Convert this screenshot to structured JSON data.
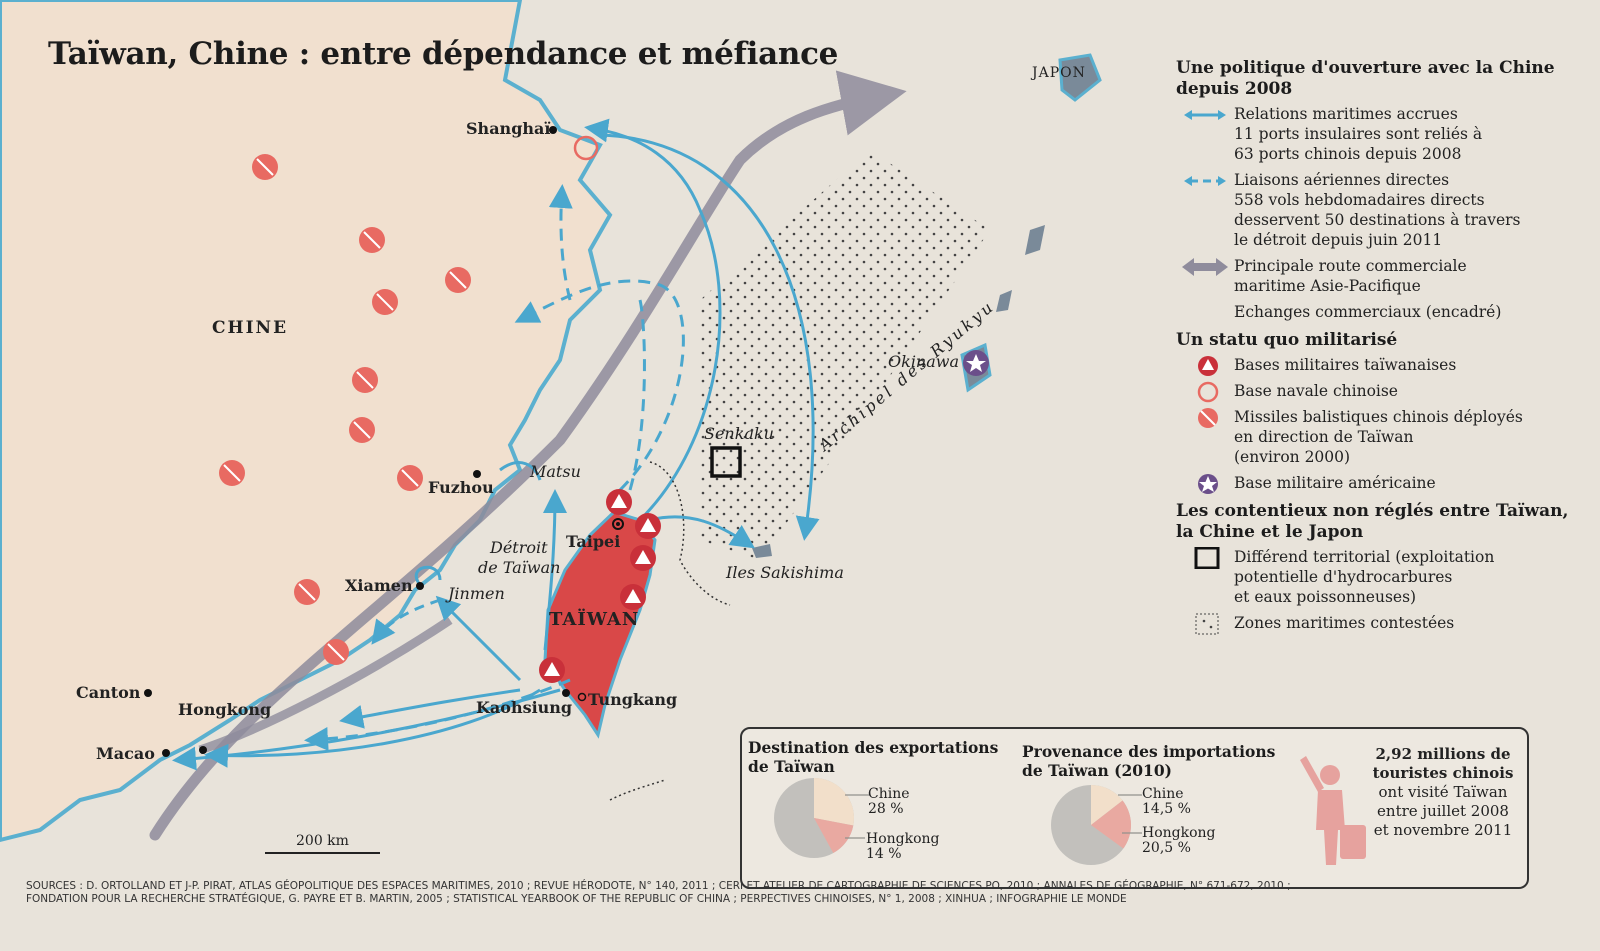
{
  "title": "Taïwan, Chine : entre dépendance et méfiance",
  "places": {
    "japon": "JAPON",
    "chine": "CHINE",
    "shanghai": "Shanghaï",
    "fuzhou": "Fuzhou",
    "matsu": "Matsu",
    "xiamen": "Xiamen",
    "jinmen": "Jinmen",
    "detroit": "Détroit",
    "detroit2": "de Taïwan",
    "taipei": "Taipei",
    "taiwan": "TAÏWAN",
    "tungkang": "Tungkang",
    "kaohsiung": "Kaohsiung",
    "canton": "Canton",
    "hongkong": "Hongkong",
    "macao": "Macao",
    "senkaku": "Senkaku",
    "sakishima": "Iles Sakishima",
    "okinawa": "Okinawa",
    "ryukyu": "Archipel des Ryukyu"
  },
  "scale_label": "200 km",
  "legend": {
    "section1": "Une politique d'ouverture avec la Chine depuis 2008",
    "maritime": [
      "Relations maritimes accrues",
      "11 ports insulaires sont reliés à",
      "63 ports chinois depuis 2008"
    ],
    "air": [
      "Liaisons aériennes directes",
      "558 vols hebdomadaires directs",
      "desservent 50 destinations à travers",
      "le détroit depuis juin 2011"
    ],
    "route": [
      "Principale route commerciale",
      "maritime Asie-Pacifique"
    ],
    "echanges": "Echanges commerciaux (encadré)",
    "section2": "Un statu quo militarisé",
    "bases_tw": "Bases militaires taïwanaises",
    "base_navale": "Base navale chinoise",
    "missiles": [
      "Missiles balistiques chinois déployés",
      "en direction de Taïwan",
      "(environ 2000)"
    ],
    "base_us": "Base militaire américaine",
    "section3": "Les contentieux non réglés entre Taïwan, la Chine et le Japon",
    "differend": [
      "Différend territorial (exploitation",
      "potentielle d'hydrocarbures",
      "et eaux poissonneuses)"
    ],
    "zones": "Zones maritimes contestées"
  },
  "inset": {
    "exports_title": [
      "Destination des exportations",
      "de Taïwan"
    ],
    "exports": [
      {
        "label": "Chine",
        "value": "28 %",
        "share": 0.28
      },
      {
        "label": "Hongkong",
        "value": "14 %",
        "share": 0.14
      }
    ],
    "imports_title": [
      "Provenance des importations",
      "de Taïwan (2010)"
    ],
    "imports": [
      {
        "label": "Chine",
        "value": "14,5 %",
        "share": 0.145
      },
      {
        "label": "Hongkong",
        "value": "20,5 %",
        "share": 0.205
      }
    ],
    "tourists_big": [
      "2,92 millions de",
      "touristes chinois"
    ],
    "tourists_rest": [
      "ont visité Taïwan",
      "entre juillet 2008",
      "et novembre 2011"
    ]
  },
  "sources": [
    "SOURCES : D. ORTOLLAND ET J-P. PIRAT, ATLAS GÉOPOLITIQUE DES ESPACES MARITIMES, 2010 ; REVUE HÉRODOTE, N° 140, 2011 ; CERI ET ATELIER DE CARTOGRAPHIE DE SCIENCES PO, 2010 ; ANNALES DE GÉOGRAPHIE, N° 671-672, 2010 ;",
    "FONDATION POUR LA RECHERCHE STRATÉGIQUE, G. PAYRE ET B. MARTIN, 2005 ; STATISTICAL YEARBOOK OF THE REPUBLIC OF CHINA ; PERPECTIVES CHINOISES, N° 1, 2008 ; XINHUA ; INFOGRAPHIE LE MONDE"
  ],
  "colors": {
    "land": "#f1e0cf",
    "sea": "#e8e3da",
    "coast": "#5bb0cf",
    "blue_arrow": "#4aa7ce",
    "route": "#8f8c9c",
    "taiwan": "#d94848",
    "missile": "#e86a62",
    "us_base": "#6b4f8a"
  }
}
